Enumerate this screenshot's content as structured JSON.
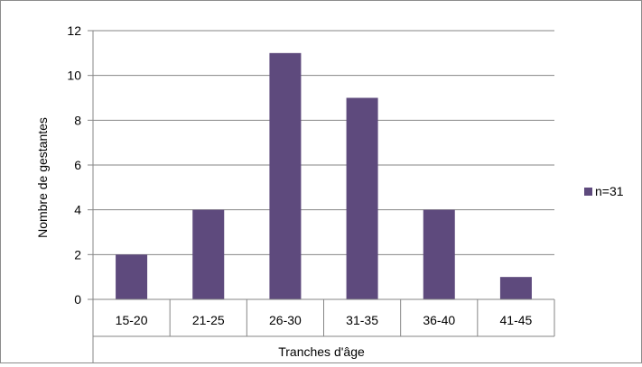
{
  "chart_data": {
    "type": "bar",
    "categories": [
      "15-20",
      "21-25",
      "26-30",
      "31-35",
      "36-40",
      "41-45"
    ],
    "series": [
      {
        "name": "n=31",
        "values": [
          2,
          4,
          11,
          9,
          4,
          1
        ]
      }
    ],
    "xlabel": "Tranches d'âge",
    "ylabel": "Nombre de gestantes",
    "ylim": [
      0,
      12
    ],
    "yticks": [
      0,
      2,
      4,
      6,
      8,
      10,
      12
    ],
    "grid": true,
    "legend": "right",
    "colors": {
      "bar": "#5e4a7d",
      "grid": "#868686",
      "axis": "#868686"
    }
  }
}
